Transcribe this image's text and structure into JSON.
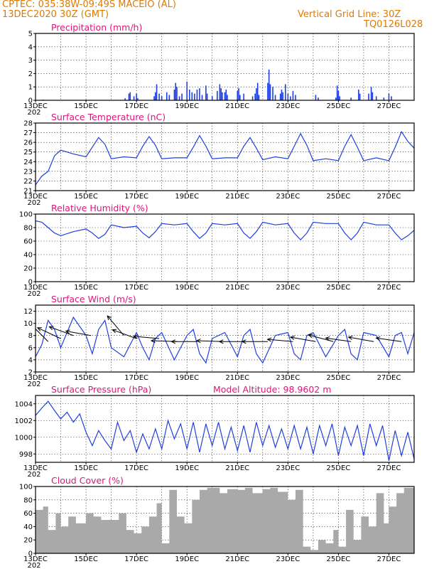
{
  "header": {
    "line1": "CPTEC:   035:38W-09:49S   MACEIO (AL)",
    "line2": "13DEC2020 30Z (GMT)",
    "grid_note": "Vertical Grid Line: 30Z",
    "code": "TQ0126L028"
  },
  "date_labels": [
    "13DEC",
    "15DEC",
    "17DEC",
    "19DEC",
    "21DEC",
    "23DEC",
    "25DEC",
    "27DEC"
  ],
  "year_fragment": "202",
  "model_altitude": "Model Altitude: 98.9602 m",
  "chart_data": [
    {
      "id": "precip",
      "type": "bar",
      "title": "Precipitation (mm/h)",
      "ylim": [
        0,
        5
      ],
      "yticks": [
        0,
        1,
        2,
        3,
        4,
        5
      ],
      "x_days_span": [
        0,
        15
      ],
      "values": [
        [
          0.3,
          0.05
        ],
        [
          2.0,
          0.05
        ],
        [
          3.55,
          0.15
        ],
        [
          3.7,
          0.5
        ],
        [
          3.75,
          0.6
        ],
        [
          3.9,
          0.3
        ],
        [
          4.0,
          0.5
        ],
        [
          4.05,
          0.15
        ],
        [
          4.7,
          0.3
        ],
        [
          4.75,
          0.6
        ],
        [
          4.8,
          1.2
        ],
        [
          4.9,
          0.5
        ],
        [
          5.0,
          0.3
        ],
        [
          5.2,
          0.6
        ],
        [
          5.3,
          0.4
        ],
        [
          5.5,
          0.8
        ],
        [
          5.55,
          1.3
        ],
        [
          5.6,
          1.0
        ],
        [
          5.7,
          0.3
        ],
        [
          5.8,
          0.5
        ],
        [
          6.0,
          1.4
        ],
        [
          6.1,
          0.8
        ],
        [
          6.2,
          0.6
        ],
        [
          6.3,
          0.5
        ],
        [
          6.4,
          0.8
        ],
        [
          6.5,
          0.9
        ],
        [
          6.6,
          0.4
        ],
        [
          6.75,
          1.1
        ],
        [
          6.8,
          0.5
        ],
        [
          7.0,
          0.3
        ],
        [
          7.2,
          0.7
        ],
        [
          7.3,
          1.2
        ],
        [
          7.35,
          0.9
        ],
        [
          7.4,
          0.6
        ],
        [
          7.5,
          0.6
        ],
        [
          7.55,
          0.8
        ],
        [
          7.6,
          0.4
        ],
        [
          8.0,
          0.7
        ],
        [
          8.05,
          0.9
        ],
        [
          8.1,
          0.4
        ],
        [
          8.25,
          0.5
        ],
        [
          8.6,
          0.3
        ],
        [
          8.7,
          0.5
        ],
        [
          8.75,
          0.9
        ],
        [
          8.8,
          1.3
        ],
        [
          8.85,
          0.4
        ],
        [
          9.2,
          1.3
        ],
        [
          9.25,
          2.3
        ],
        [
          9.3,
          1.2
        ],
        [
          9.4,
          1.0
        ],
        [
          9.5,
          0.4
        ],
        [
          9.7,
          0.5
        ],
        [
          9.75,
          0.8
        ],
        [
          9.8,
          0.6
        ],
        [
          9.9,
          1.2
        ],
        [
          10.0,
          0.5
        ],
        [
          10.1,
          0.3
        ],
        [
          10.2,
          0.7
        ],
        [
          10.3,
          0.4
        ],
        [
          11.1,
          0.4
        ],
        [
          11.2,
          0.2
        ],
        [
          11.9,
          0.2
        ],
        [
          11.95,
          1.1
        ],
        [
          12.0,
          0.7
        ],
        [
          12.05,
          0.3
        ],
        [
          12.5,
          0.2
        ],
        [
          12.8,
          0.8
        ],
        [
          12.85,
          0.5
        ],
        [
          13.2,
          0.5
        ],
        [
          13.3,
          1.0
        ],
        [
          13.35,
          0.6
        ],
        [
          13.5,
          0.3
        ],
        [
          13.8,
          0.2
        ],
        [
          14.0,
          0.5
        ],
        [
          14.1,
          0.3
        ]
      ]
    },
    {
      "id": "temp",
      "type": "line",
      "title": "Surface Temperature (nC)",
      "ylim": [
        21,
        28
      ],
      "yticks": [
        21,
        22,
        23,
        24,
        25,
        26,
        27,
        28
      ],
      "x_days_span": [
        0,
        15
      ],
      "x": [
        0,
        0.25,
        0.5,
        0.75,
        1,
        1.5,
        2,
        2.25,
        2.5,
        2.75,
        3,
        3.5,
        4,
        4.25,
        4.5,
        4.75,
        5,
        5.5,
        6,
        6.25,
        6.5,
        6.75,
        7,
        7.5,
        8,
        8.25,
        8.5,
        8.75,
        9,
        9.5,
        10,
        10.25,
        10.5,
        10.75,
        11,
        11.5,
        12,
        12.25,
        12.5,
        12.75,
        13,
        13.5,
        14,
        14.25,
        14.5,
        14.75,
        15
      ],
      "y": [
        21.6,
        22.5,
        23.0,
        24.6,
        25.2,
        24.8,
        24.5,
        25.5,
        26.5,
        25.8,
        24.3,
        24.5,
        24.4,
        25.6,
        26.6,
        25.7,
        24.3,
        24.4,
        24.4,
        25.5,
        26.7,
        25.6,
        24.3,
        24.4,
        24.4,
        25.6,
        26.5,
        25.4,
        24.2,
        24.5,
        24.3,
        25.6,
        26.9,
        25.7,
        24.1,
        24.3,
        24.1,
        25.6,
        26.8,
        25.5,
        24.1,
        24.4,
        24.1,
        25.5,
        27.1,
        26.1,
        25.4
      ]
    },
    {
      "id": "rh",
      "type": "line",
      "title": "Relative Humidity (%)",
      "ylim": [
        0,
        100
      ],
      "yticks": [
        0,
        20,
        40,
        60,
        80,
        100
      ],
      "x_days_span": [
        0,
        15
      ],
      "x": [
        0,
        0.25,
        0.5,
        0.75,
        1,
        1.5,
        2,
        2.25,
        2.5,
        2.75,
        3,
        3.5,
        4,
        4.25,
        4.5,
        4.75,
        5,
        5.5,
        6,
        6.25,
        6.5,
        6.75,
        7,
        7.5,
        8,
        8.25,
        8.5,
        8.75,
        9,
        9.5,
        10,
        10.25,
        10.5,
        10.75,
        11,
        11.5,
        12,
        12.25,
        12.5,
        12.75,
        13,
        13.5,
        14,
        14.25,
        14.5,
        14.75,
        15
      ],
      "y": [
        90,
        88,
        80,
        72,
        68,
        74,
        78,
        72,
        64,
        70,
        84,
        80,
        82,
        72,
        65,
        74,
        86,
        84,
        86,
        74,
        64,
        72,
        86,
        84,
        86,
        72,
        64,
        74,
        88,
        84,
        86,
        72,
        62,
        72,
        88,
        86,
        86,
        72,
        62,
        72,
        88,
        84,
        84,
        72,
        62,
        68,
        76
      ]
    },
    {
      "id": "wind",
      "type": "line",
      "title": "Surface Wind (m/s)",
      "ylim": [
        2,
        13
      ],
      "yticks": [
        2,
        4,
        6,
        8,
        10,
        12
      ],
      "x_days_span": [
        0,
        15
      ],
      "x": [
        0,
        0.25,
        0.5,
        0.75,
        1,
        1.5,
        2,
        2.25,
        2.5,
        2.75,
        3,
        3.5,
        4,
        4.25,
        4.5,
        4.75,
        5,
        5.5,
        6,
        6.25,
        6.5,
        6.75,
        7,
        7.5,
        8,
        8.25,
        8.5,
        8.75,
        9,
        9.5,
        10,
        10.25,
        10.5,
        10.75,
        11,
        11.5,
        12,
        12.25,
        12.5,
        12.75,
        13,
        13.5,
        14,
        14.25,
        14.5,
        14.75,
        15
      ],
      "y": [
        4.5,
        6.5,
        10.5,
        9,
        6,
        11,
        8,
        5,
        9,
        10.5,
        6,
        4.5,
        8.5,
        6,
        4,
        7.5,
        8.5,
        4,
        8,
        9,
        5,
        3.5,
        7.5,
        8.5,
        4.5,
        8,
        9,
        5,
        3.5,
        8,
        8.5,
        5,
        4,
        8,
        8.5,
        4.5,
        8,
        9,
        5,
        4,
        8.5,
        8,
        4.5,
        8,
        8.5,
        5,
        8.5
      ],
      "arrows": [
        {
          "day": 0.5,
          "speed": 7.0,
          "angle": 135
        },
        {
          "day": 1.0,
          "speed": 7.5,
          "angle": 155
        },
        {
          "day": 1.5,
          "speed": 8.0,
          "angle": 160
        },
        {
          "day": 2.2,
          "speed": 8.0,
          "angle": 170
        },
        {
          "day": 3.5,
          "speed": 8.0,
          "angle": 130
        },
        {
          "day": 4.0,
          "speed": 7.5,
          "angle": 160
        },
        {
          "day": 4.9,
          "speed": 7.5,
          "angle": 175
        },
        {
          "day": 5.6,
          "speed": 7.0,
          "angle": 178
        },
        {
          "day": 6.4,
          "speed": 7.0,
          "angle": 180
        },
        {
          "day": 7.4,
          "speed": 7.0,
          "angle": 178
        },
        {
          "day": 8.3,
          "speed": 7.0,
          "angle": 180
        },
        {
          "day": 9.2,
          "speed": 7.0,
          "angle": 180
        },
        {
          "day": 10.2,
          "speed": 7.0,
          "angle": 175
        },
        {
          "day": 11.1,
          "speed": 7.0,
          "angle": 170
        },
        {
          "day": 11.8,
          "speed": 7.0,
          "angle": 165
        },
        {
          "day": 12.5,
          "speed": 7.0,
          "angle": 172
        },
        {
          "day": 13.4,
          "speed": 7.0,
          "angle": 170
        },
        {
          "day": 14.5,
          "speed": 7.0,
          "angle": 172
        }
      ]
    },
    {
      "id": "pressure",
      "type": "line",
      "title": "Surface Pressure (hPa)",
      "ylim": [
        997,
        1005
      ],
      "yticks": [
        998,
        1000,
        1002,
        1004
      ],
      "x_days_span": [
        0,
        15
      ],
      "x": [
        0,
        0.25,
        0.5,
        0.75,
        1,
        1.25,
        1.5,
        1.75,
        2,
        2.25,
        2.5,
        2.75,
        3,
        3.25,
        3.5,
        3.75,
        4,
        4.25,
        4.5,
        4.75,
        5,
        5.25,
        5.5,
        5.75,
        6,
        6.25,
        6.5,
        6.75,
        7,
        7.25,
        7.5,
        7.75,
        8,
        8.25,
        8.5,
        8.75,
        9,
        9.25,
        9.5,
        9.75,
        10,
        10.25,
        10.5,
        10.75,
        11,
        11.25,
        11.5,
        11.75,
        12,
        12.25,
        12.5,
        12.75,
        13,
        13.25,
        13.5,
        13.75,
        14,
        14.25,
        14.5,
        14.75,
        15
      ],
      "y": [
        1002.6,
        1003.5,
        1004.3,
        1003.2,
        1002.2,
        1003.0,
        1001.8,
        1002.8,
        1000.6,
        999.0,
        1000.8,
        999.6,
        998.6,
        1001.8,
        999.6,
        1000.8,
        998.2,
        1000.4,
        998.6,
        1001.0,
        998.6,
        1002.0,
        999.8,
        1001.6,
        998.6,
        1001.8,
        998.2,
        1001.6,
        999.0,
        1001.8,
        998.6,
        1001.2,
        998.4,
        1001.4,
        998.2,
        1001.8,
        999.0,
        1001.4,
        998.8,
        1001.0,
        998.6,
        1001.4,
        998.6,
        1001.2,
        998.0,
        1001.4,
        999.0,
        1001.6,
        997.8,
        1001.2,
        999.0,
        1001.4,
        997.8,
        1001.6,
        999.0,
        1001.4,
        997.2,
        1000.8,
        997.8,
        1000.6,
        997.4
      ]
    },
    {
      "id": "cloud",
      "type": "area",
      "title": "Cloud Cover (%)",
      "ylim": [
        0,
        100
      ],
      "yticks": [
        0,
        20,
        40,
        60,
        80,
        100
      ],
      "x_days_span": [
        0,
        15
      ],
      "x": [
        0,
        0.3,
        0.5,
        0.8,
        1,
        1.3,
        1.6,
        2,
        2.3,
        2.6,
        3,
        3.3,
        3.6,
        3.9,
        4.2,
        4.5,
        4.8,
        5,
        5.3,
        5.6,
        5.9,
        6.2,
        6.5,
        6.8,
        7,
        7.3,
        7.6,
        8,
        8.3,
        8.6,
        9,
        9.3,
        9.6,
        10,
        10.3,
        10.6,
        10.9,
        11.2,
        11.5,
        11.8,
        12,
        12.3,
        12.6,
        12.9,
        13.2,
        13.5,
        13.8,
        14,
        14.3,
        14.6,
        15
      ],
      "y": [
        65,
        70,
        35,
        60,
        40,
        55,
        45,
        60,
        55,
        50,
        50,
        60,
        35,
        30,
        40,
        55,
        75,
        15,
        95,
        55,
        45,
        80,
        95,
        98,
        98,
        90,
        96,
        95,
        98,
        90,
        96,
        98,
        92,
        80,
        95,
        10,
        5,
        20,
        15,
        35,
        10,
        65,
        20,
        55,
        40,
        90,
        45,
        70,
        90,
        98,
        85
      ]
    }
  ]
}
